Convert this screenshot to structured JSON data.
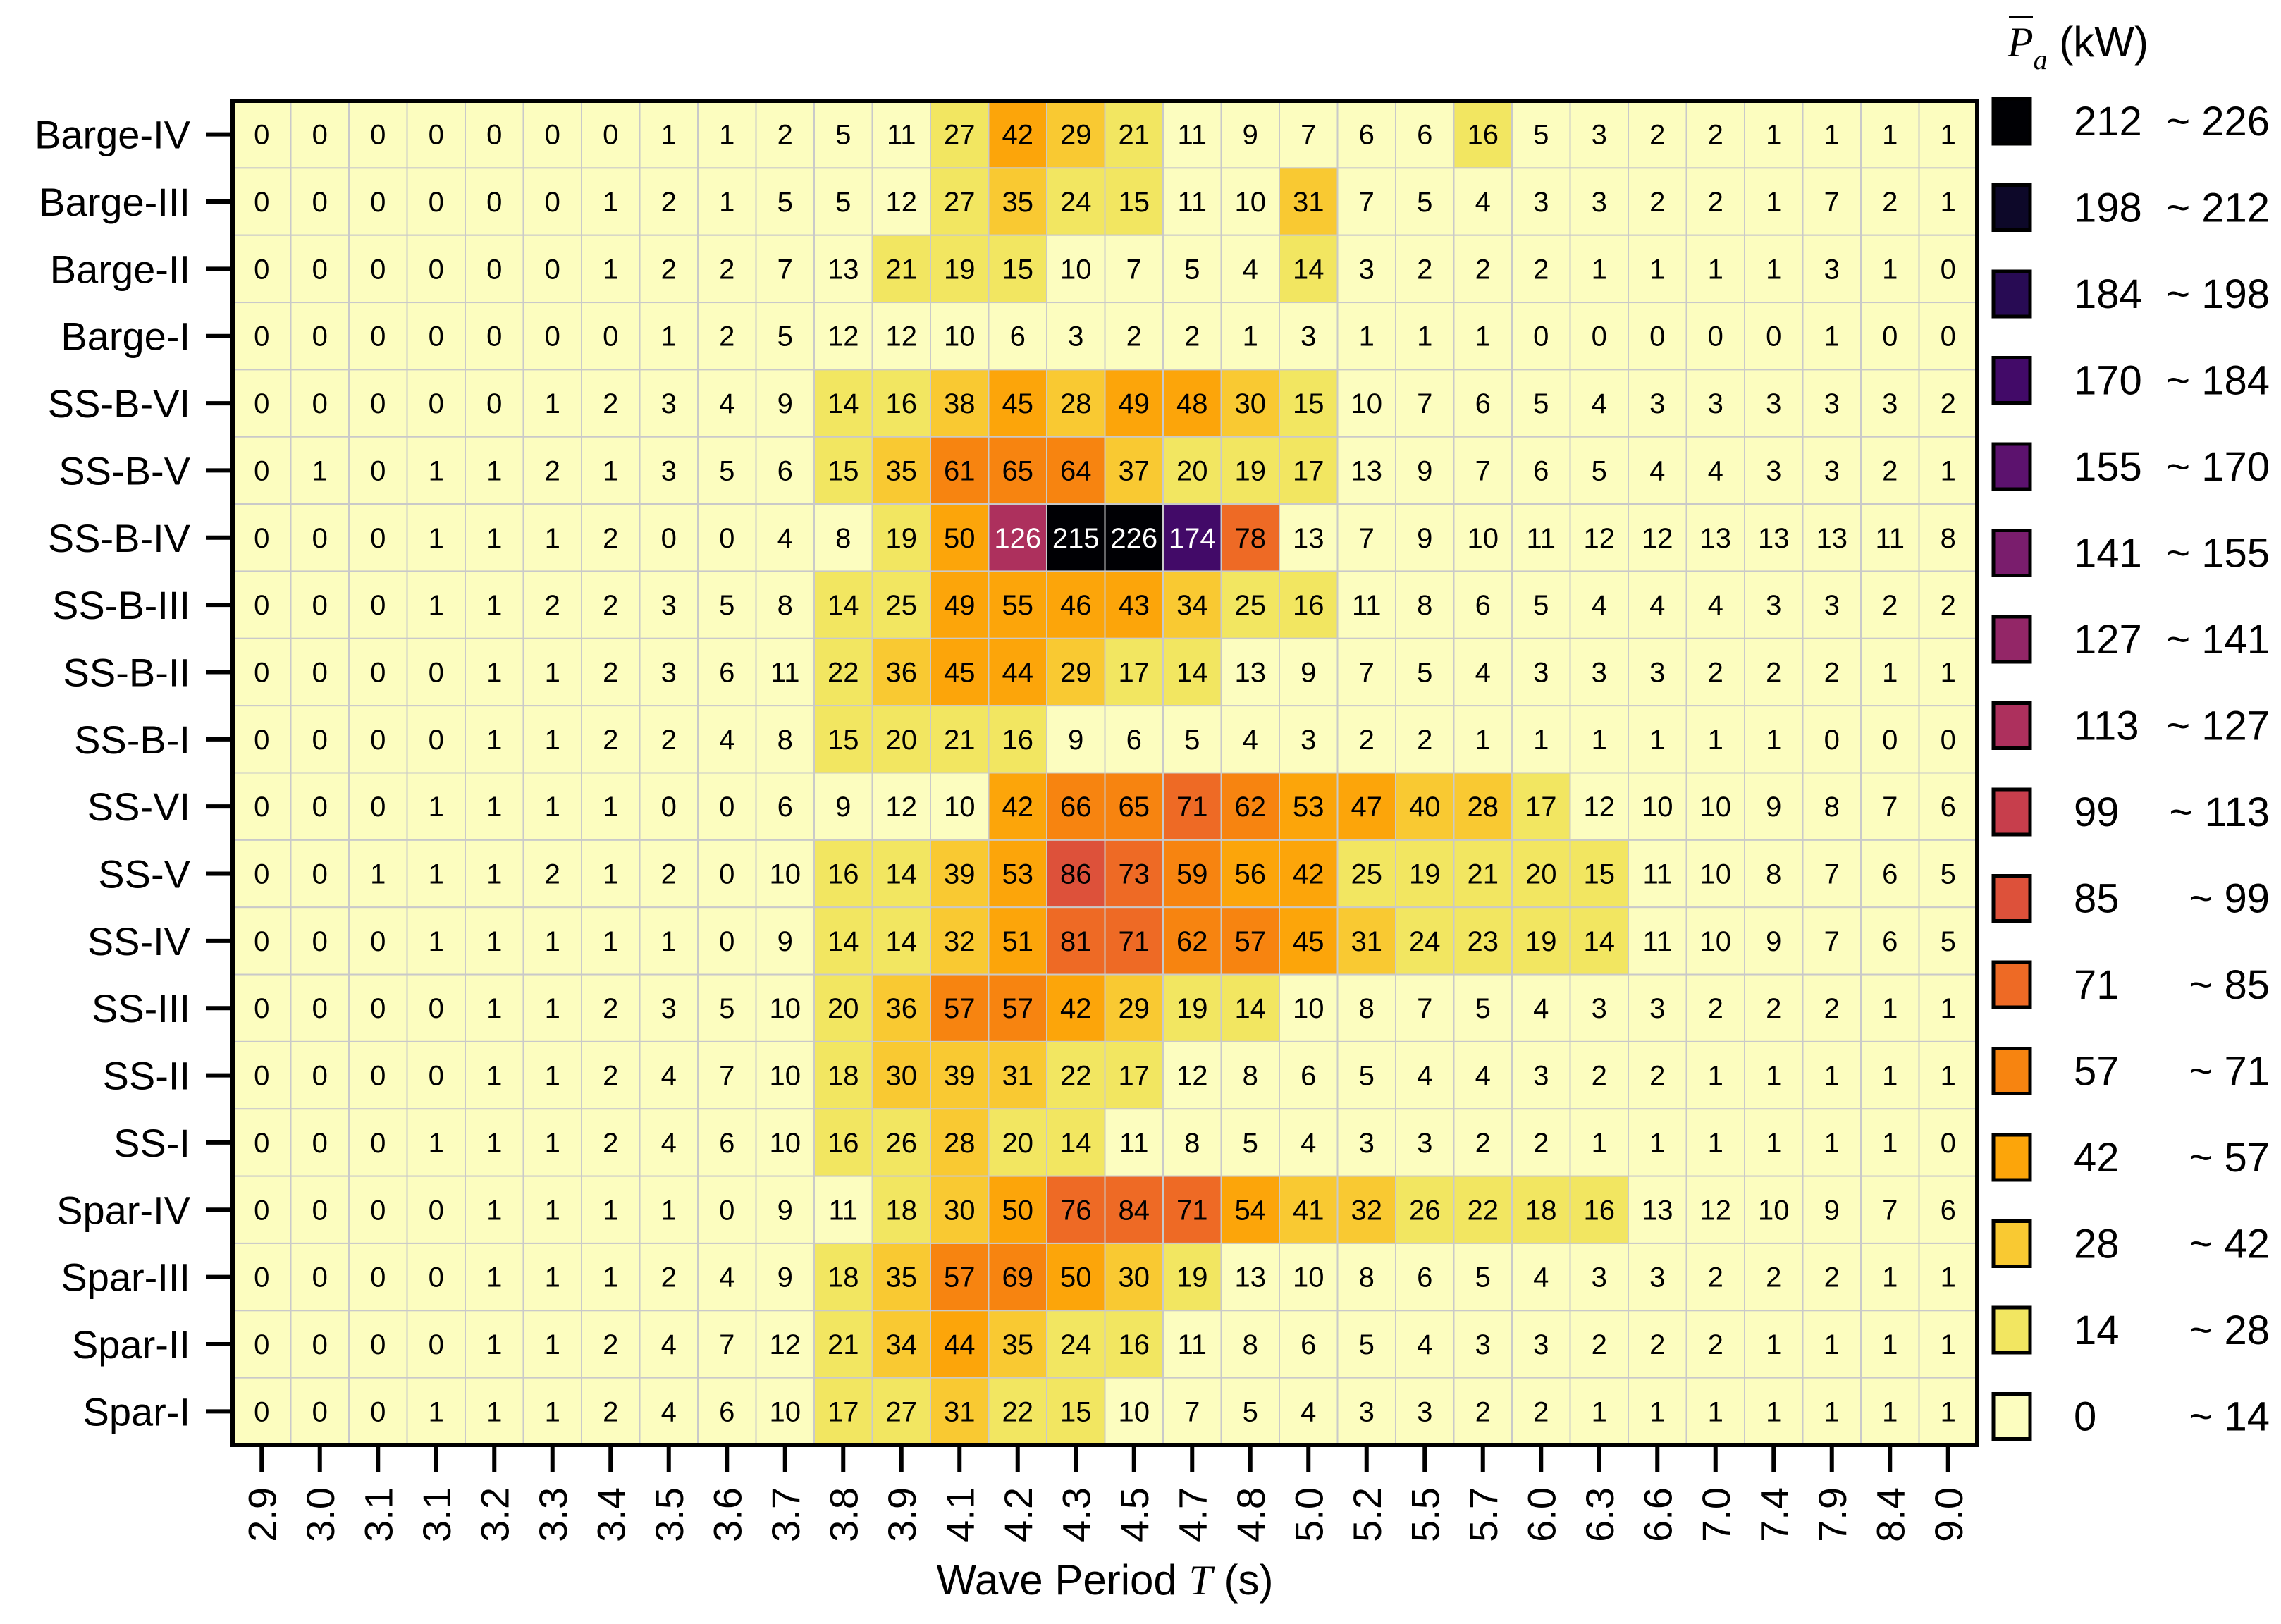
{
  "chart_data": {
    "type": "heatmap",
    "xlabel": "Wave Period T (s)",
    "xlabel_parts": {
      "prefix": "Wave Period ",
      "symbol": "T",
      "suffix": " (s)"
    },
    "colorbar_title": {
      "symbol": "P",
      "subscript": "a",
      "unit": " (kW)"
    },
    "x_categories": [
      "2.9",
      "3.0",
      "3.1",
      "3.1",
      "3.2",
      "3.3",
      "3.4",
      "3.5",
      "3.6",
      "3.7",
      "3.8",
      "3.9",
      "4.1",
      "4.2",
      "4.3",
      "4.5",
      "4.7",
      "4.8",
      "5.0",
      "5.2",
      "5.5",
      "5.7",
      "6.0",
      "6.3",
      "6.6",
      "7.0",
      "7.4",
      "7.9",
      "8.4",
      "9.0"
    ],
    "y_categories": [
      "Barge-IV",
      "Barge-III",
      "Barge-II",
      "Barge-I",
      "SS-B-VI",
      "SS-B-V",
      "SS-B-IV",
      "SS-B-III",
      "SS-B-II",
      "SS-B-I",
      "SS-VI",
      "SS-V",
      "SS-IV",
      "SS-III",
      "SS-II",
      "SS-I",
      "Spar-IV",
      "Spar-III",
      "Spar-II",
      "Spar-I"
    ],
    "values": [
      [
        0,
        0,
        0,
        0,
        0,
        0,
        0,
        1,
        1,
        2,
        5,
        11,
        27,
        42,
        29,
        21,
        11,
        9,
        7,
        6,
        6,
        16,
        5,
        3,
        2,
        2,
        1,
        1,
        1,
        1
      ],
      [
        0,
        0,
        0,
        0,
        0,
        0,
        1,
        2,
        1,
        5,
        5,
        12,
        27,
        35,
        24,
        15,
        11,
        10,
        31,
        7,
        5,
        4,
        3,
        3,
        2,
        2,
        1,
        7,
        2,
        1
      ],
      [
        0,
        0,
        0,
        0,
        0,
        0,
        1,
        2,
        2,
        7,
        13,
        21,
        19,
        15,
        10,
        7,
        5,
        4,
        14,
        3,
        2,
        2,
        2,
        1,
        1,
        1,
        1,
        3,
        1,
        0
      ],
      [
        0,
        0,
        0,
        0,
        0,
        0,
        0,
        1,
        2,
        5,
        12,
        12,
        10,
        6,
        3,
        2,
        2,
        1,
        3,
        1,
        1,
        1,
        0,
        0,
        0,
        0,
        0,
        1,
        0,
        0
      ],
      [
        0,
        0,
        0,
        0,
        0,
        1,
        2,
        3,
        4,
        9,
        14,
        16,
        38,
        45,
        28,
        49,
        48,
        30,
        15,
        10,
        7,
        6,
        5,
        4,
        3,
        3,
        3,
        3,
        3,
        2
      ],
      [
        0,
        1,
        0,
        1,
        1,
        2,
        1,
        3,
        5,
        6,
        15,
        35,
        61,
        65,
        64,
        37,
        20,
        19,
        17,
        13,
        9,
        7,
        6,
        5,
        4,
        4,
        3,
        3,
        2,
        1
      ],
      [
        0,
        0,
        0,
        1,
        1,
        1,
        2,
        0,
        0,
        4,
        8,
        19,
        50,
        126,
        215,
        226,
        174,
        78,
        13,
        7,
        9,
        10,
        11,
        12,
        12,
        13,
        13,
        13,
        11,
        8
      ],
      [
        0,
        0,
        0,
        1,
        1,
        2,
        2,
        3,
        5,
        8,
        14,
        25,
        49,
        55,
        46,
        43,
        34,
        25,
        16,
        11,
        8,
        6,
        5,
        4,
        4,
        4,
        3,
        3,
        2,
        2
      ],
      [
        0,
        0,
        0,
        0,
        1,
        1,
        2,
        3,
        6,
        11,
        22,
        36,
        45,
        44,
        29,
        17,
        14,
        13,
        9,
        7,
        5,
        4,
        3,
        3,
        3,
        2,
        2,
        2,
        1,
        1
      ],
      [
        0,
        0,
        0,
        0,
        1,
        1,
        2,
        2,
        4,
        8,
        15,
        20,
        21,
        16,
        9,
        6,
        5,
        4,
        3,
        2,
        2,
        1,
        1,
        1,
        1,
        1,
        1,
        0,
        0,
        0
      ],
      [
        0,
        0,
        0,
        1,
        1,
        1,
        1,
        0,
        0,
        6,
        9,
        12,
        10,
        42,
        66,
        65,
        71,
        62,
        53,
        47,
        40,
        28,
        17,
        12,
        10,
        10,
        9,
        8,
        7,
        6
      ],
      [
        0,
        0,
        1,
        1,
        1,
        2,
        1,
        2,
        0,
        10,
        16,
        14,
        39,
        53,
        86,
        73,
        59,
        56,
        42,
        25,
        19,
        21,
        20,
        15,
        11,
        10,
        8,
        7,
        6,
        5
      ],
      [
        0,
        0,
        0,
        1,
        1,
        1,
        1,
        1,
        0,
        9,
        14,
        14,
        32,
        51,
        81,
        71,
        62,
        57,
        45,
        31,
        24,
        23,
        19,
        14,
        11,
        10,
        9,
        7,
        6,
        5
      ],
      [
        0,
        0,
        0,
        0,
        1,
        1,
        2,
        3,
        5,
        10,
        20,
        36,
        57,
        57,
        42,
        29,
        19,
        14,
        10,
        8,
        7,
        5,
        4,
        3,
        3,
        2,
        2,
        2,
        1,
        1
      ],
      [
        0,
        0,
        0,
        0,
        1,
        1,
        2,
        4,
        7,
        10,
        18,
        30,
        39,
        31,
        22,
        17,
        12,
        8,
        6,
        5,
        4,
        4,
        3,
        2,
        2,
        1,
        1,
        1,
        1,
        1
      ],
      [
        0,
        0,
        0,
        1,
        1,
        1,
        2,
        4,
        6,
        10,
        16,
        26,
        28,
        20,
        14,
        11,
        8,
        5,
        4,
        3,
        3,
        2,
        2,
        1,
        1,
        1,
        1,
        1,
        1,
        0
      ],
      [
        0,
        0,
        0,
        0,
        1,
        1,
        1,
        1,
        0,
        9,
        11,
        18,
        30,
        50,
        76,
        84,
        71,
        54,
        41,
        32,
        26,
        22,
        18,
        16,
        13,
        12,
        10,
        9,
        7,
        6
      ],
      [
        0,
        0,
        0,
        0,
        1,
        1,
        1,
        2,
        4,
        9,
        18,
        35,
        57,
        69,
        50,
        30,
        19,
        13,
        10,
        8,
        6,
        5,
        4,
        3,
        3,
        2,
        2,
        2,
        1,
        1
      ],
      [
        0,
        0,
        0,
        0,
        1,
        1,
        2,
        4,
        7,
        12,
        21,
        34,
        44,
        35,
        24,
        16,
        11,
        8,
        6,
        5,
        4,
        3,
        3,
        2,
        2,
        2,
        1,
        1,
        1,
        1
      ],
      [
        0,
        0,
        0,
        1,
        1,
        1,
        2,
        4,
        6,
        10,
        17,
        27,
        31,
        22,
        15,
        10,
        7,
        5,
        4,
        3,
        3,
        2,
        2,
        1,
        1,
        1,
        1,
        1,
        1,
        1
      ]
    ],
    "bins": [
      {
        "label_lo": "212",
        "label_hi": "~ 226",
        "lo": 212,
        "hi": 226,
        "color": "#000004"
      },
      {
        "label_lo": "198",
        "label_hi": "~ 212",
        "lo": 198,
        "hi": 212,
        "color": "#0d0829"
      },
      {
        "label_lo": "184",
        "label_hi": "~ 198",
        "lo": 184,
        "hi": 198,
        "color": "#280b54"
      },
      {
        "label_lo": "170",
        "label_hi": "~ 184",
        "lo": 170,
        "hi": 184,
        "color": "#420a68"
      },
      {
        "label_lo": "155",
        "label_hi": "~ 170",
        "lo": 155,
        "hi": 170,
        "color": "#5c126e"
      },
      {
        "label_lo": "141",
        "label_hi": "~ 155",
        "lo": 141,
        "hi": 155,
        "color": "#7a1d6d"
      },
      {
        "label_lo": "127",
        "label_hi": "~ 141",
        "lo": 127,
        "hi": 141,
        "color": "#932667"
      },
      {
        "label_lo": "113",
        "label_hi": "~ 127",
        "lo": 113,
        "hi": 127,
        "color": "#ad305d"
      },
      {
        "label_lo": "99",
        "label_hi": "~ 113",
        "lo": 99,
        "hi": 113,
        "color": "#c73e4c"
      },
      {
        "label_lo": "85",
        "label_hi": "~ 99",
        "lo": 85,
        "hi": 99,
        "color": "#dd513a"
      },
      {
        "label_lo": "71",
        "label_hi": "~ 85",
        "lo": 71,
        "hi": 85,
        "color": "#ee6a25"
      },
      {
        "label_lo": "57",
        "label_hi": "~ 71",
        "lo": 57,
        "hi": 71,
        "color": "#f78410"
      },
      {
        "label_lo": "42",
        "label_hi": "~ 57",
        "lo": 42,
        "hi": 57,
        "color": "#fca50a"
      },
      {
        "label_lo": "28",
        "label_hi": "~ 42",
        "lo": 28,
        "hi": 42,
        "color": "#f9c932"
      },
      {
        "label_lo": "14",
        "label_hi": "~ 28",
        "lo": 14,
        "hi": 28,
        "color": "#f2e661"
      },
      {
        "label_lo": "0",
        "label_hi": "~ 14",
        "lo": 0,
        "hi": 14,
        "color": "#fcfdbf"
      }
    ],
    "grid": true,
    "legend_position": "right"
  }
}
